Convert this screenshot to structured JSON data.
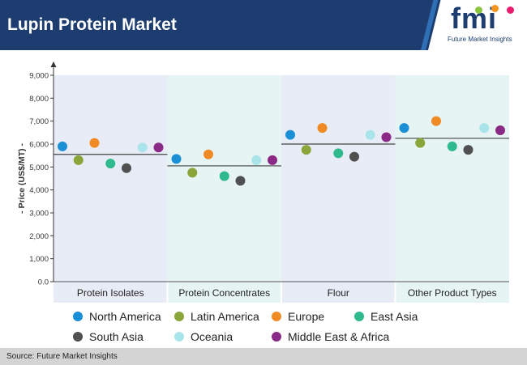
{
  "header": {
    "title": "Lupin Protein Market",
    "logo_text": "fmi",
    "logo_subtitle": "Future Market Insights"
  },
  "footer": {
    "source": "Source: Future Market Insights"
  },
  "colors": {
    "header_bg": "#1d3d70",
    "band_a": "#e8ecf6",
    "band_b": "#e6f4f3"
  },
  "chart_data": {
    "type": "scatter",
    "ylabel": "- Price (US$/MT) -",
    "ylim": [
      0,
      9000
    ],
    "yticks": [
      "0.0",
      "1,000",
      "2,000",
      "3,000",
      "4,000",
      "5,000",
      "6,000",
      "7,000",
      "8,000",
      "9,000"
    ],
    "categories": [
      "Protein Isolates",
      "Protein Concentrates",
      "Flour",
      "Other Product Types"
    ],
    "averages": [
      5550,
      5050,
      6000,
      6250
    ],
    "series": [
      {
        "name": "North America",
        "color": "#1a8fd6",
        "values": [
          5900,
          5350,
          6400,
          6700
        ]
      },
      {
        "name": "Latin America",
        "color": "#8aa63a",
        "values": [
          5300,
          4750,
          5750,
          6050
        ]
      },
      {
        "name": "Europe",
        "color": "#f08a24",
        "values": [
          6050,
          5550,
          6700,
          7000
        ]
      },
      {
        "name": "East Asia",
        "color": "#2fba8e",
        "values": [
          5150,
          4600,
          5600,
          5900
        ]
      },
      {
        "name": "South Asia",
        "color": "#505050",
        "values": [
          4950,
          4400,
          5450,
          5750
        ]
      },
      {
        "name": "Oceania",
        "color": "#a9e4ea",
        "values": [
          5850,
          5300,
          6400,
          6700
        ]
      },
      {
        "name": "Middle East & Africa",
        "color": "#8a2a86",
        "values": [
          5850,
          5300,
          6300,
          6600
        ]
      }
    ]
  }
}
